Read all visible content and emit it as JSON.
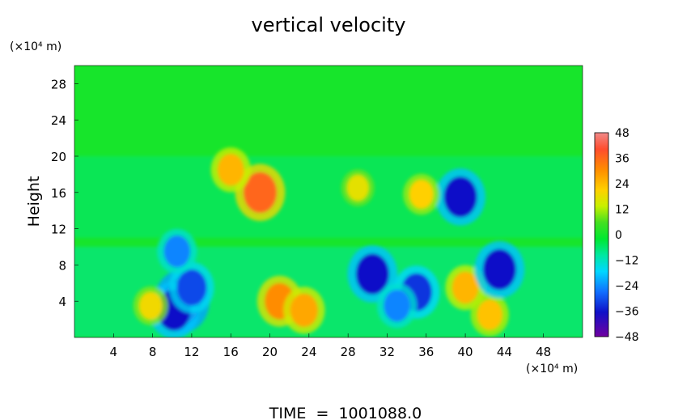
{
  "chart_data": {
    "type": "heatmap",
    "title": "vertical velocity",
    "ylabel": "Height",
    "xunit": "(×10⁴ m)",
    "yunit": "(×10⁴ m)",
    "xlim": [
      0,
      52
    ],
    "ylim": [
      0,
      30
    ],
    "xticks": [
      4,
      8,
      12,
      16,
      20,
      24,
      28,
      32,
      36,
      40,
      44,
      48
    ],
    "yticks": [
      4,
      8,
      12,
      16,
      20,
      24,
      28
    ],
    "colorbar": {
      "min": -48,
      "max": 48,
      "ticks": [
        48,
        36,
        24,
        12,
        0,
        -12,
        -24,
        -36,
        -48
      ]
    },
    "background_value": 2,
    "bands": [
      {
        "y": [
          0,
          10
        ],
        "value": -8
      },
      {
        "y": [
          11,
          20
        ],
        "value": -5
      }
    ],
    "features": [
      {
        "x": 11,
        "y": 4,
        "value": -42
      },
      {
        "x": 10.2,
        "y": 3,
        "value": -36
      },
      {
        "x": 12,
        "y": 5.5,
        "value": -30
      },
      {
        "x": 21,
        "y": 4,
        "value": 30
      },
      {
        "x": 23.5,
        "y": 3,
        "value": 26
      },
      {
        "x": 19,
        "y": 16,
        "value": 36
      },
      {
        "x": 30.5,
        "y": 7,
        "value": -36
      },
      {
        "x": 35,
        "y": 5,
        "value": -32
      },
      {
        "x": 33,
        "y": 3.5,
        "value": -24
      },
      {
        "x": 40,
        "y": 5.5,
        "value": 24
      },
      {
        "x": 42.5,
        "y": 2.5,
        "value": 22
      },
      {
        "x": 7.8,
        "y": 3.5,
        "value": 18
      },
      {
        "x": 39.5,
        "y": 15.5,
        "value": -36
      },
      {
        "x": 35.5,
        "y": 15.8,
        "value": 20
      },
      {
        "x": 29,
        "y": 16.5,
        "value": 16
      },
      {
        "x": 43.5,
        "y": 7.5,
        "value": -36
      },
      {
        "x": 10.5,
        "y": 9.5,
        "value": -24
      },
      {
        "x": 16,
        "y": 18.5,
        "value": 24
      }
    ]
  },
  "footer": {
    "time_label": "TIME  =  1001088.0"
  }
}
